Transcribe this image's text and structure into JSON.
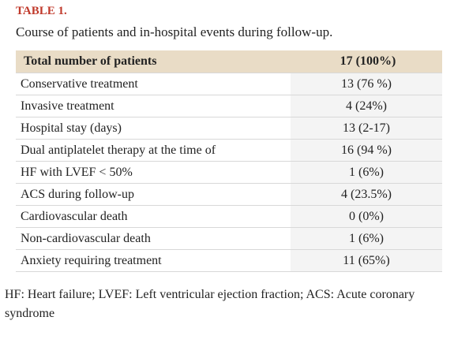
{
  "document": {
    "label": "TABLE 1.",
    "caption": "Course of patients and in-hospital events during follow-up.",
    "table": {
      "header": [
        "Total number of  patients",
        "17 (100%)"
      ],
      "rows": [
        [
          "Conservative treatment",
          "13 (76 %)"
        ],
        [
          "Invasive treatment",
          "4 (24%)"
        ],
        [
          "Hospital stay (days)",
          "13 (2-17)"
        ],
        [
          "Dual antiplatelet therapy at the time of",
          "16 (94 %)"
        ],
        [
          "HF with LVEF < 50%",
          "1 (6%)"
        ],
        [
          "ACS during follow-up",
          "4 (23.5%)"
        ],
        [
          "Cardiovascular death",
          "0 (0%)"
        ],
        [
          "Non-cardiovascular death",
          "1 (6%)"
        ],
        [
          "Anxiety requiring treatment",
          "11 (65%)"
        ]
      ]
    },
    "footnote": "HF: Heart failure; LVEF: Left ventricular ejection fraction; ACS: Acute coronary syndrome"
  }
}
